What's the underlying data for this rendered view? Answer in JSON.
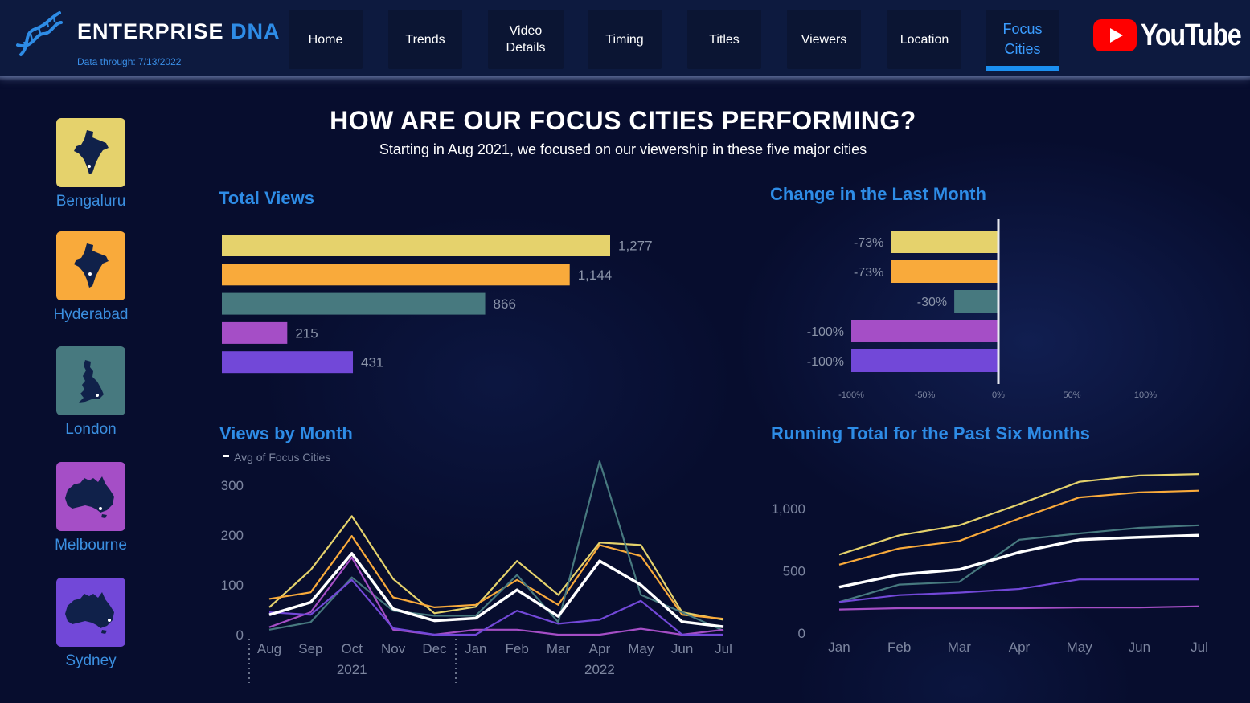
{
  "header": {
    "brand_main": "ENTERPRISE",
    "brand_accent": "DNA",
    "data_through": "Data through: 7/13/2022",
    "nav": [
      {
        "label": "Home"
      },
      {
        "label": "Trends"
      },
      {
        "label": "Video Details"
      },
      {
        "label": "Timing"
      },
      {
        "label": "Titles"
      },
      {
        "label": "Viewers"
      },
      {
        "label": "Location"
      },
      {
        "label": "Focus Cities",
        "active": true
      }
    ],
    "youtube_label": "YouTube"
  },
  "page": {
    "title": "HOW ARE OUR FOCUS CITIES PERFORMING?",
    "subtitle": "Starting in Aug 2021, we focused on our viewership in these five major cities"
  },
  "cities": [
    {
      "name": "Bengaluru",
      "color": "#e5d26c",
      "label_color": "#3b8fe0",
      "map": "india-map-icon"
    },
    {
      "name": "Hyderabad",
      "color": "#f9aa3b",
      "label_color": "#3b8fe0",
      "map": "india-map-icon"
    },
    {
      "name": "London",
      "color": "#47797f",
      "label_color": "#3b8fe0",
      "map": "uk-map-icon"
    },
    {
      "name": "Melbourne",
      "color": "#a54ec6",
      "label_color": "#3b8fe0",
      "map": "australia-map-icon"
    },
    {
      "name": "Sydney",
      "color": "#7248d8",
      "label_color": "#3b8fe0",
      "map": "australia-map-icon"
    }
  ],
  "sections": {
    "total_views": "Total Views",
    "change": "Change in the Last Month",
    "views_by_month": "Views by Month",
    "running_total": "Running Total for the Past Six Months"
  },
  "chart_data": [
    {
      "type": "bar",
      "orientation": "horizontal",
      "title": "Total Views",
      "categories": [
        "Bengaluru",
        "Hyderabad",
        "London",
        "Melbourne",
        "Sydney"
      ],
      "values": [
        1277,
        1144,
        866,
        215,
        431
      ],
      "value_labels": [
        "1,277",
        "1,144",
        "866",
        "215",
        "431"
      ],
      "colors": [
        "#e5d26c",
        "#f9aa3b",
        "#47797f",
        "#a54ec6",
        "#7248d8"
      ]
    },
    {
      "type": "bar",
      "orientation": "horizontal",
      "title": "Change in the Last Month",
      "categories": [
        "Bengaluru",
        "Hyderabad",
        "London",
        "Melbourne",
        "Sydney"
      ],
      "values": [
        -73,
        -73,
        -30,
        -100,
        -100
      ],
      "value_labels": [
        "-73%",
        "-73%",
        "-30%",
        "-100%",
        "-100%"
      ],
      "colors": [
        "#e5d26c",
        "#f9aa3b",
        "#47797f",
        "#a54ec6",
        "#7248d8"
      ],
      "xlim": [
        -100,
        100
      ],
      "xticks": [
        -100,
        -50,
        0,
        50,
        100
      ],
      "xtick_labels": [
        "-100%",
        "-50%",
        "0%",
        "50%",
        "100%"
      ]
    },
    {
      "type": "line",
      "title": "Views by Month",
      "categories": [
        "Aug",
        "Sep",
        "Oct",
        "Nov",
        "Dec",
        "Jan",
        "Feb",
        "Mar",
        "Apr",
        "May",
        "Jun",
        "Jul"
      ],
      "year_labels": [
        {
          "label": "2021",
          "at": 2
        },
        {
          "label": "2022",
          "at": 8
        }
      ],
      "ylim": [
        0,
        350
      ],
      "yticks": [
        0,
        100,
        200,
        300
      ],
      "legend": "Avg of Focus Cities",
      "series": [
        {
          "name": "Bengaluru",
          "color": "#e5d26c",
          "values": [
            55,
            130,
            238,
            112,
            43,
            56,
            148,
            80,
            185,
            180,
            45,
            30
          ]
        },
        {
          "name": "Hyderabad",
          "color": "#f9aa3b",
          "values": [
            72,
            85,
            198,
            75,
            55,
            60,
            110,
            60,
            180,
            158,
            40,
            32
          ]
        },
        {
          "name": "London",
          "color": "#47797f",
          "values": [
            10,
            25,
            115,
            48,
            38,
            38,
            120,
            25,
            348,
            80,
            45,
            8
          ]
        },
        {
          "name": "Melbourne",
          "color": "#a54ec6",
          "values": [
            15,
            45,
            155,
            10,
            0,
            10,
            10,
            0,
            0,
            12,
            0,
            10
          ]
        },
        {
          "name": "Sydney",
          "color": "#7248d8",
          "values": [
            45,
            40,
            110,
            13,
            0,
            0,
            48,
            22,
            30,
            68,
            0,
            0
          ]
        },
        {
          "name": "Avg of Focus Cities",
          "color": "#ffffff",
          "values": [
            40,
            65,
            163,
            52,
            28,
            33,
            90,
            37,
            148,
            100,
            26,
            16
          ]
        }
      ]
    },
    {
      "type": "line",
      "title": "Running Total for the Past Six Months",
      "categories": [
        "Jan",
        "Feb",
        "Mar",
        "Apr",
        "May",
        "Jun",
        "Jul"
      ],
      "ylim": [
        0,
        1300
      ],
      "yticks": [
        0,
        500,
        1000
      ],
      "ytick_labels": [
        "0",
        "500",
        "1,000"
      ],
      "series": [
        {
          "name": "Bengaluru",
          "color": "#e5d26c",
          "values": [
            630,
            785,
            865,
            1035,
            1215,
            1265,
            1277
          ]
        },
        {
          "name": "Hyderabad",
          "color": "#f9aa3b",
          "values": [
            550,
            680,
            740,
            920,
            1090,
            1130,
            1144
          ]
        },
        {
          "name": "London",
          "color": "#47797f",
          "values": [
            250,
            390,
            410,
            750,
            800,
            845,
            866
          ]
        },
        {
          "name": "Melbourne",
          "color": "#a54ec6",
          "values": [
            190,
            200,
            200,
            200,
            205,
            205,
            215
          ]
        },
        {
          "name": "Sydney",
          "color": "#7248d8",
          "values": [
            250,
            305,
            325,
            355,
            431,
            431,
            431
          ]
        },
        {
          "name": "Avg of Focus Cities",
          "color": "#ffffff",
          "values": [
            370,
            470,
            510,
            650,
            750,
            770,
            785
          ]
        }
      ]
    }
  ]
}
